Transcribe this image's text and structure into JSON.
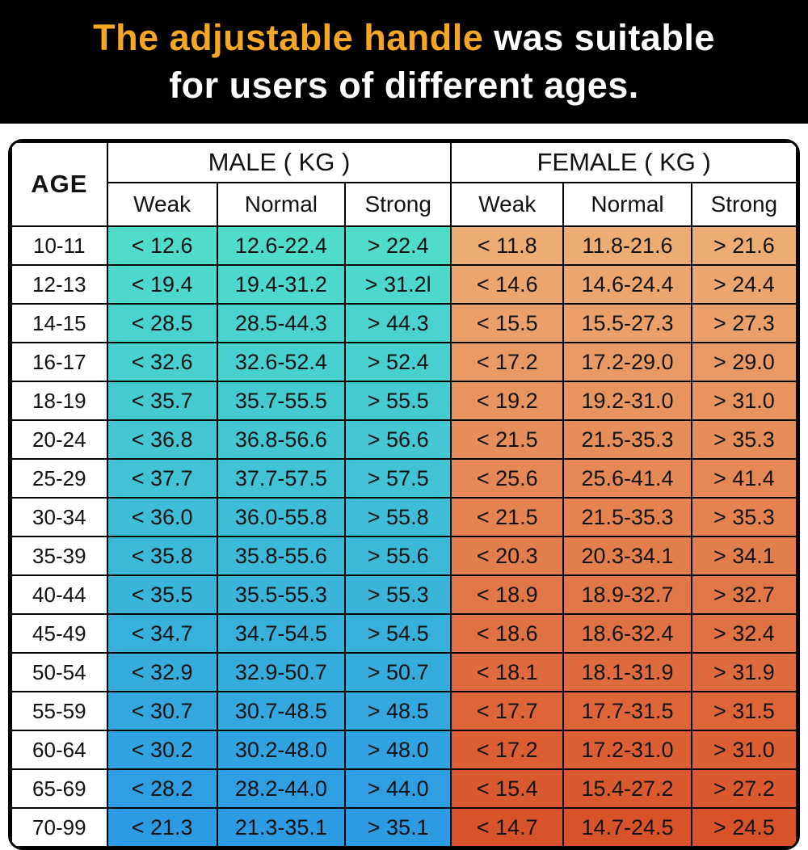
{
  "banner": {
    "title_highlight": "The adjustable handle",
    "title_rest": " was suitable",
    "title_line2": "for users of different ages.",
    "highlight_color": "#F5A623",
    "text_color": "#FFFFFF",
    "background": "#000000"
  },
  "chart_data": {
    "type": "table",
    "age_header": "AGE",
    "groups": [
      {
        "label": "MALE ( KG )",
        "sub": [
          "Weak",
          "Normal",
          "Strong"
        ]
      },
      {
        "label": "FEMALE ( KG )",
        "sub": [
          "Weak",
          "Normal",
          "Strong"
        ]
      }
    ],
    "rows": [
      {
        "age": "10-11",
        "male": [
          "< 12.6",
          "12.6-22.4",
          "> 22.4"
        ],
        "female": [
          "< 11.8",
          "11.8-21.6",
          "> 21.6"
        ]
      },
      {
        "age": "12-13",
        "male": [
          "< 19.4",
          "19.4-31.2",
          "> 31.2l"
        ],
        "female": [
          "< 14.6",
          "14.6-24.4",
          "> 24.4"
        ]
      },
      {
        "age": "14-15",
        "male": [
          "< 28.5",
          "28.5-44.3",
          "> 44.3"
        ],
        "female": [
          "< 15.5",
          "15.5-27.3",
          "> 27.3"
        ]
      },
      {
        "age": "16-17",
        "male": [
          "< 32.6",
          "32.6-52.4",
          "> 52.4"
        ],
        "female": [
          "< 17.2",
          "17.2-29.0",
          "> 29.0"
        ]
      },
      {
        "age": "18-19",
        "male": [
          "< 35.7",
          "35.7-55.5",
          "> 55.5"
        ],
        "female": [
          "< 19.2",
          "19.2-31.0",
          "> 31.0"
        ]
      },
      {
        "age": "20-24",
        "male": [
          "< 36.8",
          "36.8-56.6",
          "> 56.6"
        ],
        "female": [
          "< 21.5",
          "21.5-35.3",
          "> 35.3"
        ]
      },
      {
        "age": "25-29",
        "male": [
          "< 37.7",
          "37.7-57.5",
          "> 57.5"
        ],
        "female": [
          "< 25.6",
          "25.6-41.4",
          "> 41.4"
        ]
      },
      {
        "age": "30-34",
        "male": [
          "< 36.0",
          "36.0-55.8",
          "> 55.8"
        ],
        "female": [
          "< 21.5",
          "21.5-35.3",
          "> 35.3"
        ]
      },
      {
        "age": "35-39",
        "male": [
          "< 35.8",
          "35.8-55.6",
          "> 55.6"
        ],
        "female": [
          "< 20.3",
          "20.3-34.1",
          "> 34.1"
        ]
      },
      {
        "age": "40-44",
        "male": [
          "< 35.5",
          "35.5-55.3",
          "> 55.3"
        ],
        "female": [
          "< 18.9",
          "18.9-32.7",
          "> 32.7"
        ]
      },
      {
        "age": "45-49",
        "male": [
          "< 34.7",
          "34.7-54.5",
          "> 54.5"
        ],
        "female": [
          "< 18.6",
          "18.6-32.4",
          "> 32.4"
        ]
      },
      {
        "age": "50-54",
        "male": [
          "< 32.9",
          "32.9-50.7",
          "> 50.7"
        ],
        "female": [
          "< 18.1",
          "18.1-31.9",
          "> 31.9"
        ]
      },
      {
        "age": "55-59",
        "male": [
          "< 30.7",
          "30.7-48.5",
          "> 48.5"
        ],
        "female": [
          "< 17.7",
          "17.7-31.5",
          "> 31.5"
        ]
      },
      {
        "age": "60-64",
        "male": [
          "< 30.2",
          "30.2-48.0",
          "> 48.0"
        ],
        "female": [
          "< 17.2",
          "17.2-31.0",
          "> 31.0"
        ]
      },
      {
        "age": "65-69",
        "male": [
          "< 28.2",
          "28.2-44.0",
          "> 44.0"
        ],
        "female": [
          "< 15.4",
          "15.4-27.2",
          "> 27.2"
        ]
      },
      {
        "age": "70-99",
        "male": [
          "< 21.3",
          "21.3-35.1",
          "> 35.1"
        ],
        "female": [
          "< 14.7",
          "14.7-24.5",
          "> 24.5"
        ]
      }
    ],
    "colors": {
      "male_top": "#4FDCCB",
      "male_bottom": "#2D9AE4",
      "female_top": "#EDAC72",
      "female_bottom": "#D9532A",
      "header_bg": "#FFFFFF",
      "border": "#000000",
      "cell_text": "#121212"
    }
  }
}
